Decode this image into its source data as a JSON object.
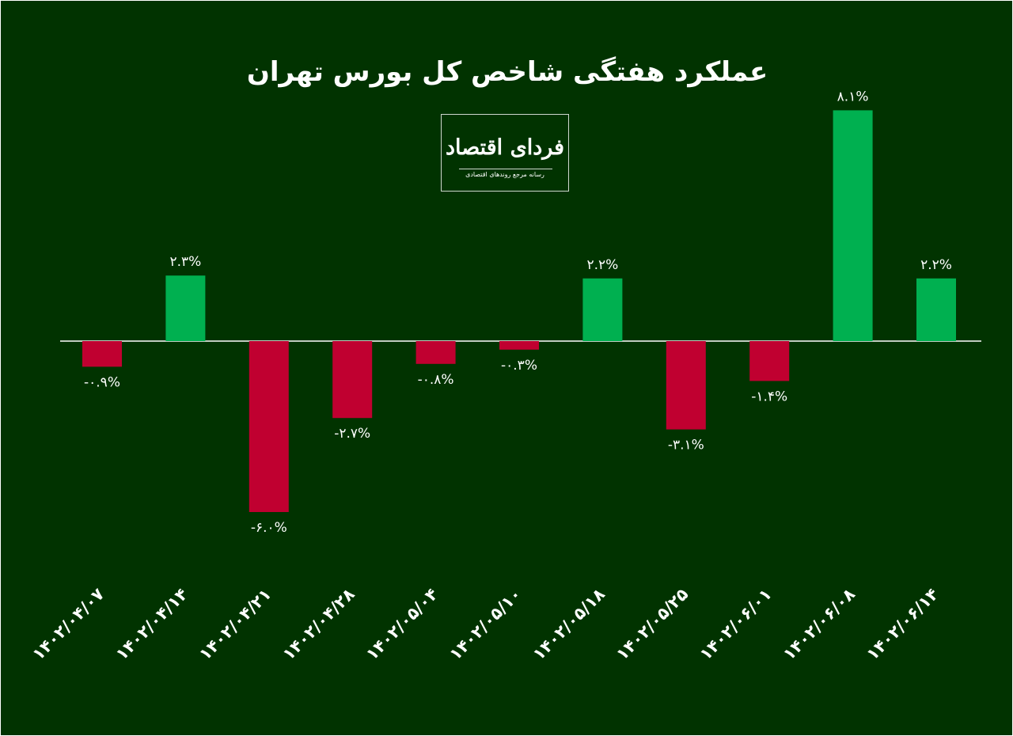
{
  "chart_data": {
    "type": "bar",
    "title": "عملکرد هفتگی شاخص کل بورس تهران",
    "categories": [
      "۱۴۰۲/۰۴/۰۷",
      "۱۴۰۲/۰۴/۱۴",
      "۱۴۰۲/۰۴/۲۱",
      "۱۴۰۲/۰۴/۲۸",
      "۱۴۰۲/۰۵/۰۴",
      "۱۴۰۲/۰۵/۱۰",
      "۱۴۰۲/۰۵/۱۸",
      "۱۴۰۲/۰۵/۲۵",
      "۱۴۰۲/۰۶/۰۱",
      "۱۴۰۲/۰۶/۰۸",
      "۱۴۰۲/۰۶/۱۴"
    ],
    "values": [
      -0.9,
      2.3,
      -6.0,
      -2.7,
      -0.8,
      -0.3,
      2.2,
      -3.1,
      -1.4,
      8.1,
      2.2
    ],
    "value_labels": [
      "-۰.۹%",
      "۲.۳%",
      "-۶.۰%",
      "-۲.۷%",
      "-۰.۸%",
      "-۰.۳%",
      "۲.۲%",
      "-۳.۱%",
      "-۱.۴%",
      "۸.۱%",
      "۲.۲%"
    ],
    "xlabel": "",
    "ylabel": "",
    "grid": false,
    "legend": "none",
    "colors": {
      "positive": "#00b050",
      "negative": "#c00030",
      "background": "#013300",
      "text": "#ffffff"
    }
  },
  "logo": {
    "name": "فردای اقتصاد",
    "tagline": "رسانه مرجع روندهای اقتصادی"
  }
}
